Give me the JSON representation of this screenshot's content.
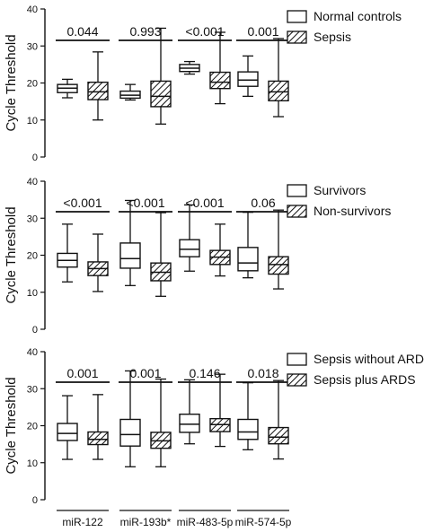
{
  "chart_data": [
    {
      "type": "box",
      "ylabel": "Cycle Threshold",
      "ylim": [
        0,
        40
      ],
      "yticks": [
        0,
        10,
        20,
        30,
        40
      ],
      "categories": [
        "miR-122",
        "miR-193b*",
        "miR-483-5p",
        "miR-574-5p"
      ],
      "show_category_labels": false,
      "legend": [
        {
          "label": "Normal controls",
          "pattern": "open"
        },
        {
          "label": "Sepsis",
          "pattern": "hatched"
        }
      ],
      "p_values": [
        "0.044",
        "0.993",
        "<0.001",
        "0.001"
      ],
      "boxes": [
        [
          {
            "min": 16.0,
            "q1": 17.4,
            "median": 18.6,
            "q3": 19.6,
            "max": 21.0
          },
          {
            "min": 15.4,
            "q1": 15.9,
            "median": 16.7,
            "q3": 17.8,
            "max": 19.6
          },
          {
            "min": 22.4,
            "q1": 23.1,
            "median": 24.0,
            "q3": 25.0,
            "max": 25.8
          },
          {
            "min": 16.4,
            "q1": 19.1,
            "median": 20.8,
            "q3": 23.0,
            "max": 27.3
          }
        ],
        [
          {
            "min": 10.0,
            "q1": 15.5,
            "median": 17.6,
            "q3": 20.2,
            "max": 28.4
          },
          {
            "min": 8.9,
            "q1": 13.6,
            "median": 16.4,
            "q3": 20.5,
            "max": 34.8
          },
          {
            "min": 14.4,
            "q1": 18.5,
            "median": 20.2,
            "q3": 22.9,
            "max": 33.7
          },
          {
            "min": 10.9,
            "q1": 15.2,
            "median": 17.6,
            "q3": 20.5,
            "max": 32.0
          }
        ]
      ]
    },
    {
      "type": "box",
      "ylabel": "Cycle Threshold",
      "ylim": [
        0,
        40
      ],
      "yticks": [
        0,
        10,
        20,
        30,
        40
      ],
      "categories": [
        "miR-122",
        "miR-193b*",
        "miR-483-5p",
        "miR-574-5p"
      ],
      "show_category_labels": false,
      "legend": [
        {
          "label": "Survivors",
          "pattern": "open"
        },
        {
          "label": "Non-survivors",
          "pattern": "hatched"
        }
      ],
      "p_values": [
        "<0.001",
        "<0.001",
        "<0.001",
        "0.06"
      ],
      "boxes": [
        [
          {
            "min": 12.8,
            "q1": 16.8,
            "median": 18.6,
            "q3": 20.5,
            "max": 28.4
          },
          {
            "min": 11.8,
            "q1": 16.5,
            "median": 19.1,
            "q3": 23.3,
            "max": 34.8
          },
          {
            "min": 15.7,
            "q1": 19.6,
            "median": 21.6,
            "q3": 24.2,
            "max": 33.6
          },
          {
            "min": 13.9,
            "q1": 15.8,
            "median": 17.9,
            "q3": 22.1,
            "max": 31.6
          }
        ],
        [
          {
            "min": 10.2,
            "q1": 14.5,
            "median": 16.4,
            "q3": 18.2,
            "max": 25.7
          },
          {
            "min": 8.9,
            "q1": 13.1,
            "median": 15.4,
            "q3": 17.9,
            "max": 31.5
          },
          {
            "min": 14.4,
            "q1": 17.5,
            "median": 19.5,
            "q3": 21.3,
            "max": 28.4
          },
          {
            "min": 10.9,
            "q1": 14.9,
            "median": 17.5,
            "q3": 19.6,
            "max": 32.2
          }
        ]
      ]
    },
    {
      "type": "box",
      "ylabel": "Cycle Threshold",
      "ylim": [
        0,
        40
      ],
      "yticks": [
        0,
        10,
        20,
        30,
        40
      ],
      "categories": [
        "miR-122",
        "miR-193b*",
        "miR-483-5p",
        "miR-574-5p"
      ],
      "show_category_labels": true,
      "legend": [
        {
          "label": "Sepsis without ARDS",
          "pattern": "open"
        },
        {
          "label": "Sepsis plus ARDS",
          "pattern": "hatched"
        }
      ],
      "p_values": [
        "0.001",
        "0.001",
        "0.146",
        "0.018"
      ],
      "boxes": [
        [
          {
            "min": 10.9,
            "q1": 16.0,
            "median": 17.9,
            "q3": 20.6,
            "max": 28.1
          },
          {
            "min": 8.9,
            "q1": 14.5,
            "median": 17.6,
            "q3": 21.7,
            "max": 34.8
          },
          {
            "min": 15.1,
            "q1": 18.2,
            "median": 20.4,
            "q3": 23.1,
            "max": 32.4
          },
          {
            "min": 13.5,
            "q1": 16.3,
            "median": 18.3,
            "q3": 21.7,
            "max": 31.6
          }
        ],
        [
          {
            "min": 10.9,
            "q1": 14.9,
            "median": 16.3,
            "q3": 18.3,
            "max": 28.4
          },
          {
            "min": 8.9,
            "q1": 13.9,
            "median": 15.9,
            "q3": 18.2,
            "max": 32.6
          },
          {
            "min": 14.4,
            "q1": 18.4,
            "median": 20.3,
            "q3": 21.9,
            "max": 33.9
          },
          {
            "min": 11.0,
            "q1": 15.1,
            "median": 16.9,
            "q3": 19.5,
            "max": 32.2
          }
        ]
      ]
    }
  ]
}
